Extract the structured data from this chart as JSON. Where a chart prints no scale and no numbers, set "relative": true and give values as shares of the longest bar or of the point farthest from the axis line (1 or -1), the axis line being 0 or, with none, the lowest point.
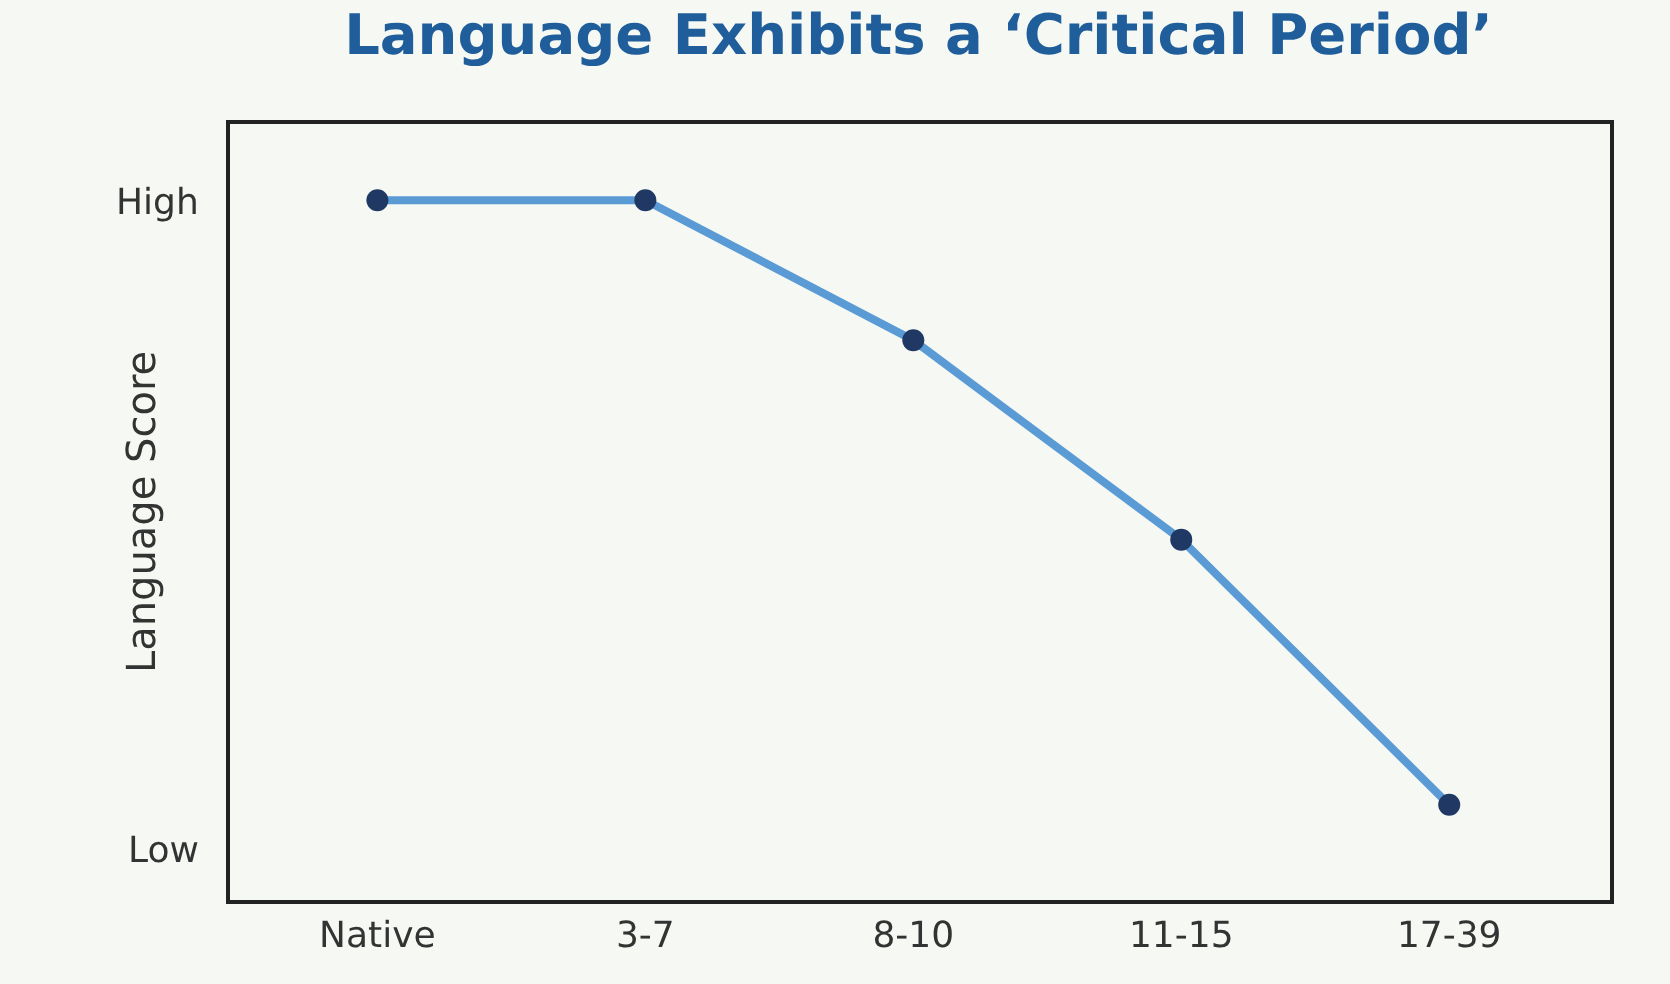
{
  "chart_data": {
    "type": "line",
    "title": "Language Exhibits a ‘Critical Period’",
    "ylabel": "Language Score",
    "categories": [
      "Native",
      "3-7",
      "8-10",
      "11-15",
      "17-39"
    ],
    "series": [
      {
        "color": "#5b9bd5",
        "values": [
          1,
          1,
          0.8,
          0.515,
          0.136
        ]
      }
    ],
    "relative": true,
    "marker": "circle",
    "line_style": "solid",
    "grid": false,
    "annotations": [
      "High",
      "Low"
    ]
  }
}
